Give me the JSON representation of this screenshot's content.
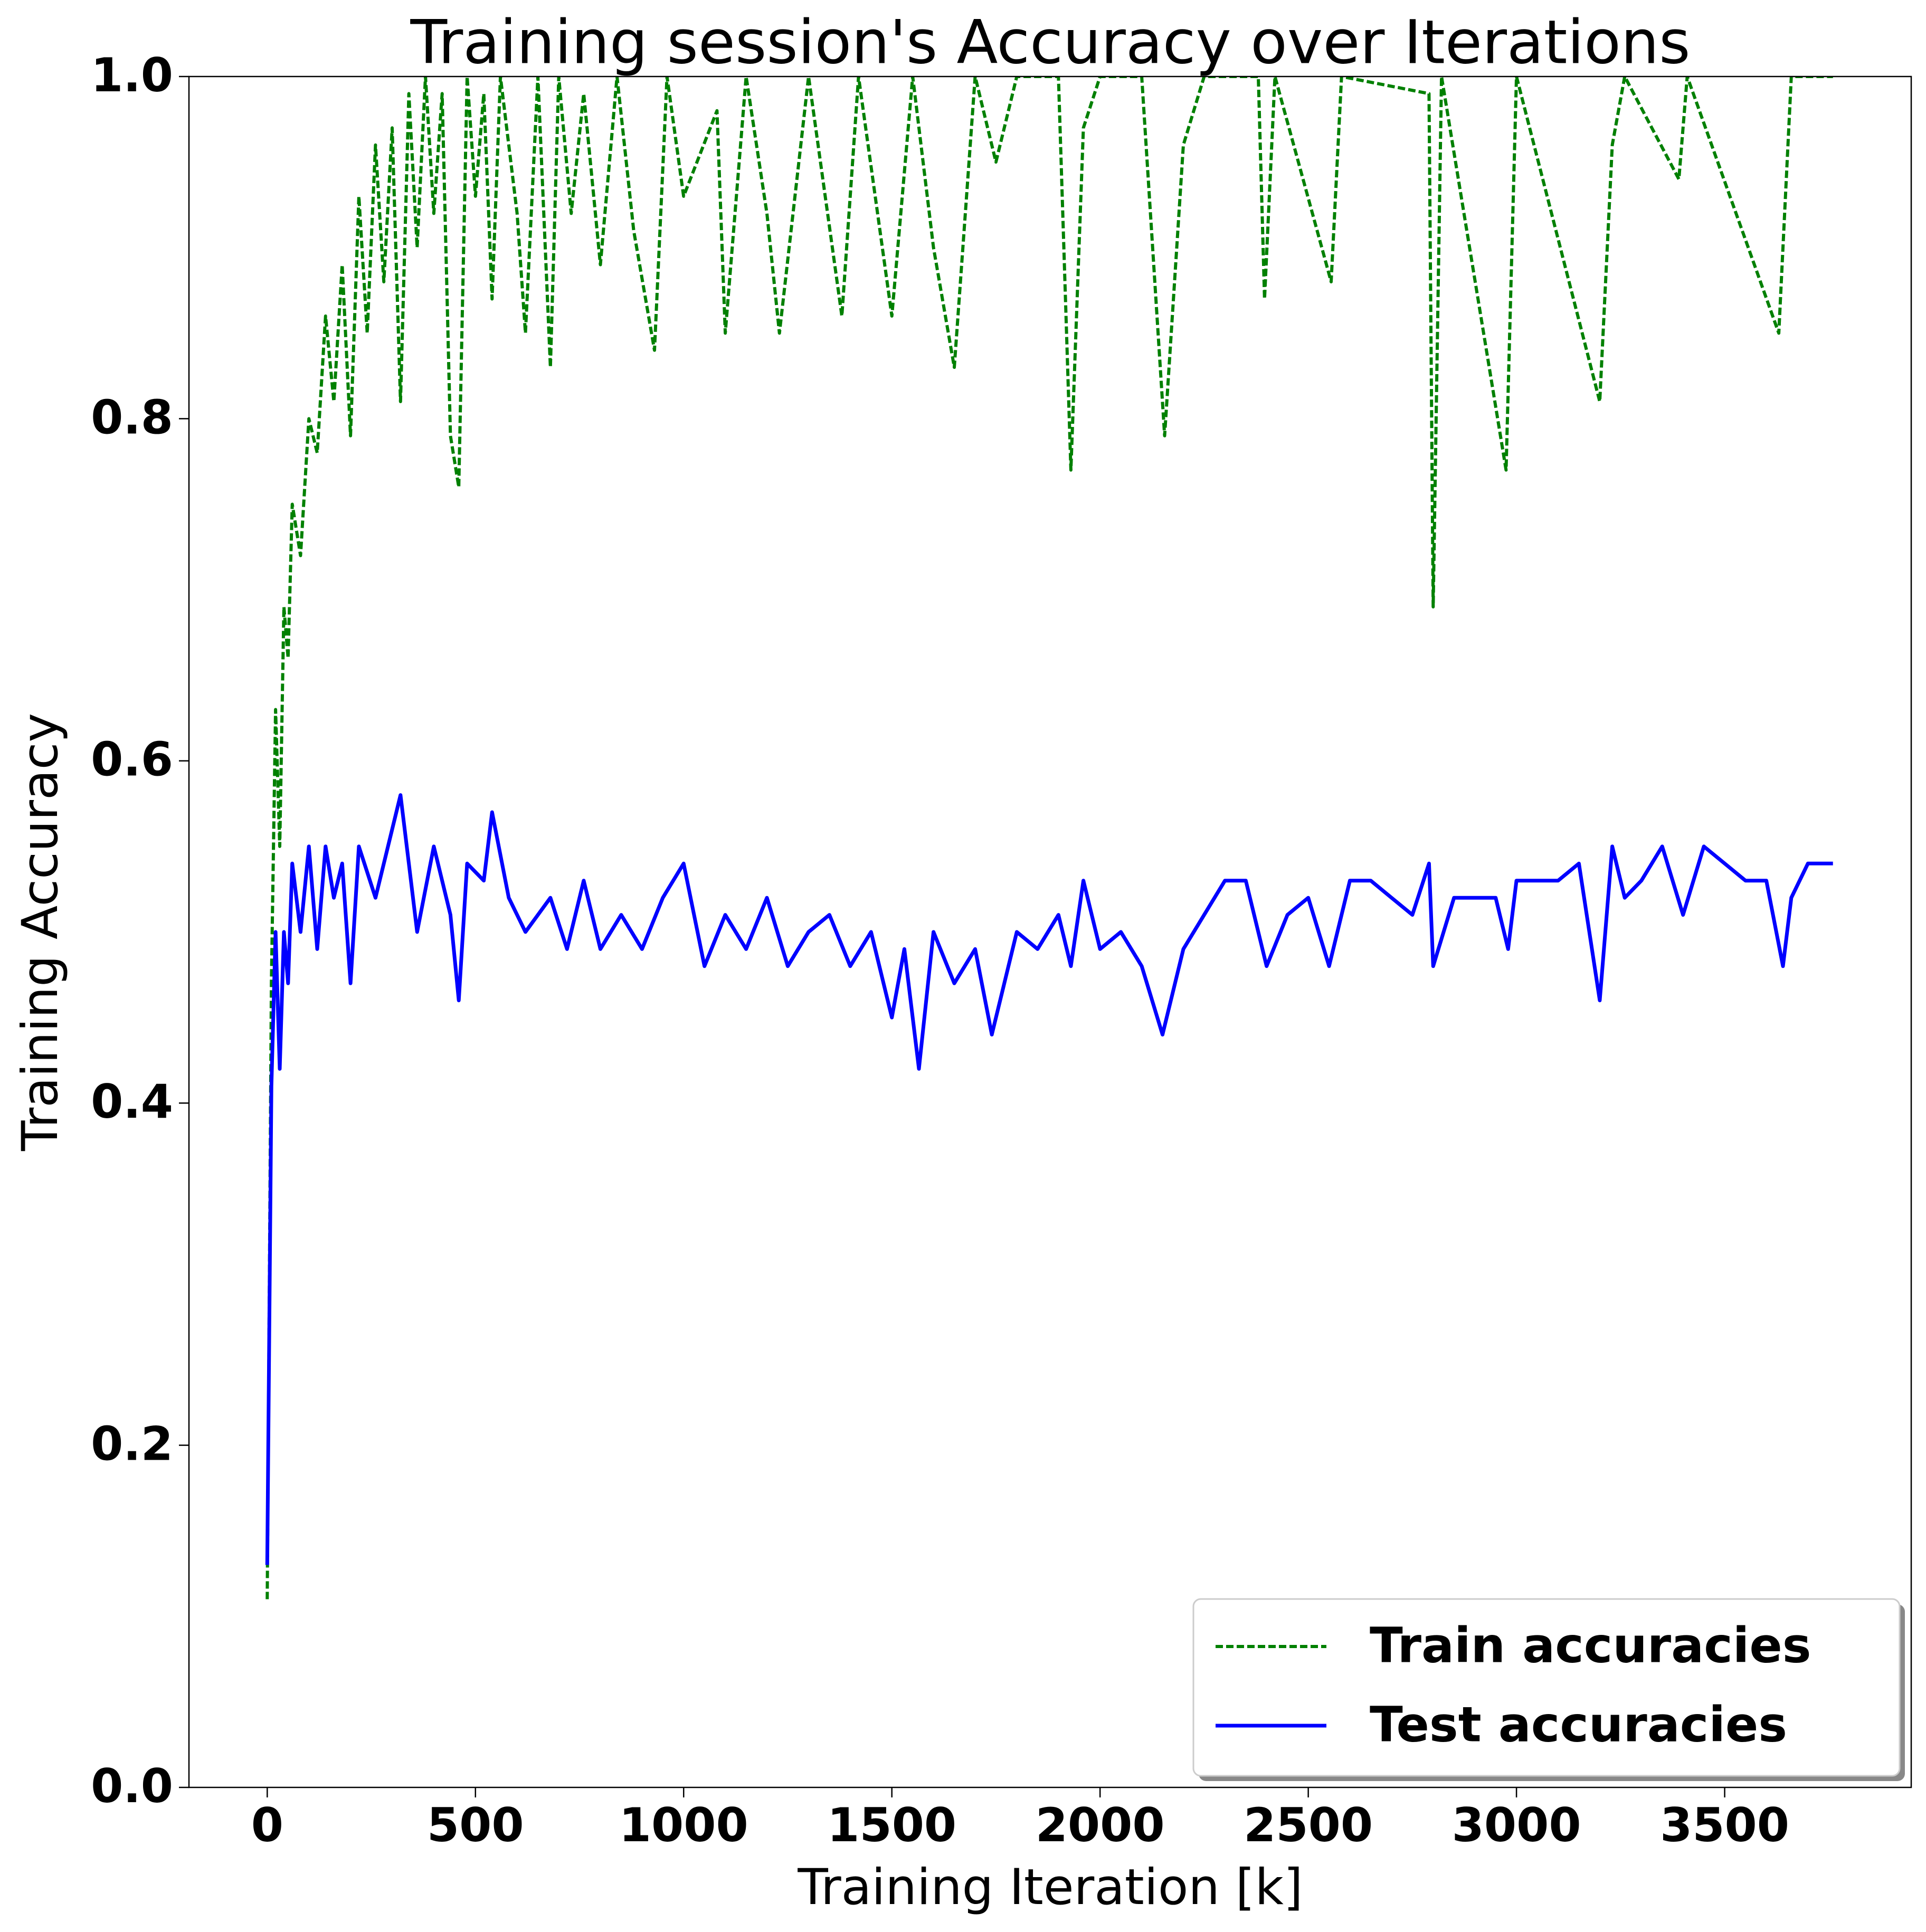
{
  "chart_data": {
    "type": "line",
    "title": "Training session's Accuracy over Iterations",
    "xlabel": "Training Iteration [k]",
    "ylabel": "Training Accuracy",
    "xlim": [
      -188,
      3948
    ],
    "ylim": [
      0,
      1
    ],
    "xticks": [
      0,
      500,
      1000,
      1500,
      2000,
      2500,
      3000,
      3500
    ],
    "yticks": [
      {
        "value": 0,
        "label": "0.0"
      },
      0.2,
      0.4,
      0.6,
      0.8,
      {
        "value": 1,
        "label": "1.0"
      }
    ],
    "legend": "lower right",
    "series": [
      {
        "name": "Train accuracies",
        "color": "#008000",
        "style": "dashed",
        "x": [
          0,
          10,
          20,
          30,
          40,
          50,
          60,
          80,
          100,
          120,
          140,
          160,
          180,
          200,
          220,
          240,
          260,
          280,
          300,
          320,
          340,
          360,
          380,
          400,
          420,
          440,
          460,
          480,
          500,
          520,
          540,
          560,
          600,
          620,
          650,
          680,
          700,
          730,
          760,
          800,
          840,
          880,
          930,
          960,
          1000,
          1080,
          1100,
          1150,
          1200,
          1230,
          1300,
          1380,
          1420,
          1500,
          1550,
          1600,
          1650,
          1700,
          1750,
          1800,
          1900,
          1930,
          1960,
          2000,
          2100,
          2155,
          2200,
          2250,
          2380,
          2395,
          2420,
          2555,
          2580,
          2790,
          2800,
          2820,
          2975,
          3000,
          3200,
          3230,
          3260,
          3390,
          3410,
          3630,
          3660,
          3760
        ],
        "values": [
          0.11,
          0.47,
          0.63,
          0.55,
          0.69,
          0.66,
          0.75,
          0.72,
          0.8,
          0.78,
          0.86,
          0.81,
          0.89,
          0.79,
          0.93,
          0.85,
          0.96,
          0.88,
          0.97,
          0.81,
          0.99,
          0.9,
          1.0,
          0.92,
          0.99,
          0.79,
          0.76,
          1.0,
          0.93,
          0.99,
          0.87,
          1.0,
          0.92,
          0.85,
          1.0,
          0.83,
          1.0,
          0.92,
          0.99,
          0.89,
          1.0,
          0.91,
          0.84,
          1.0,
          0.93,
          0.98,
          0.85,
          1.0,
          0.92,
          0.85,
          1.0,
          0.86,
          1.0,
          0.86,
          1.0,
          0.9,
          0.83,
          1.0,
          0.95,
          1.0,
          1.0,
          0.77,
          0.97,
          1.0,
          1.0,
          0.79,
          0.96,
          1.0,
          1.0,
          0.87,
          1.0,
          0.88,
          1.0,
          0.99,
          0.69,
          1.0,
          0.77,
          1.0,
          0.81,
          0.96,
          1.0,
          0.94,
          1.0,
          0.85,
          1.0,
          1.0
        ]
      },
      {
        "name": "Test accuracies",
        "color": "#0000ff",
        "style": "solid",
        "x": [
          0,
          10,
          20,
          30,
          40,
          50,
          60,
          80,
          100,
          120,
          140,
          160,
          180,
          200,
          220,
          260,
          300,
          320,
          340,
          360,
          400,
          440,
          460,
          480,
          520,
          540,
          580,
          620,
          680,
          720,
          760,
          800,
          850,
          900,
          950,
          1000,
          1050,
          1100,
          1150,
          1200,
          1250,
          1300,
          1350,
          1400,
          1450,
          1500,
          1530,
          1565,
          1600,
          1650,
          1700,
          1740,
          1800,
          1850,
          1900,
          1930,
          1960,
          2000,
          2050,
          2100,
          2150,
          2200,
          2250,
          2300,
          2350,
          2400,
          2450,
          2500,
          2550,
          2600,
          2650,
          2700,
          2750,
          2790,
          2800,
          2850,
          2900,
          2950,
          2980,
          3000,
          3050,
          3100,
          3150,
          3200,
          3230,
          3260,
          3300,
          3350,
          3400,
          3450,
          3500,
          3550,
          3600,
          3640,
          3660,
          3700,
          3760
        ],
        "values": [
          0.13,
          0.41,
          0.5,
          0.42,
          0.5,
          0.47,
          0.54,
          0.5,
          0.55,
          0.49,
          0.55,
          0.52,
          0.54,
          0.47,
          0.55,
          0.52,
          0.56,
          0.58,
          0.54,
          0.5,
          0.55,
          0.51,
          0.46,
          0.54,
          0.53,
          0.57,
          0.52,
          0.5,
          0.52,
          0.49,
          0.53,
          0.49,
          0.51,
          0.49,
          0.52,
          0.54,
          0.48,
          0.51,
          0.49,
          0.52,
          0.48,
          0.5,
          0.51,
          0.48,
          0.5,
          0.45,
          0.49,
          0.42,
          0.5,
          0.47,
          0.49,
          0.44,
          0.5,
          0.49,
          0.51,
          0.48,
          0.53,
          0.49,
          0.5,
          0.48,
          0.44,
          0.49,
          0.51,
          0.53,
          0.53,
          0.48,
          0.51,
          0.52,
          0.48,
          0.53,
          0.53,
          0.52,
          0.51,
          0.54,
          0.48,
          0.52,
          0.52,
          0.52,
          0.49,
          0.53,
          0.53,
          0.53,
          0.54,
          0.46,
          0.55,
          0.52,
          0.53,
          0.55,
          0.51,
          0.55,
          0.54,
          0.53,
          0.53,
          0.48,
          0.52,
          0.54,
          0.54
        ]
      }
    ]
  }
}
